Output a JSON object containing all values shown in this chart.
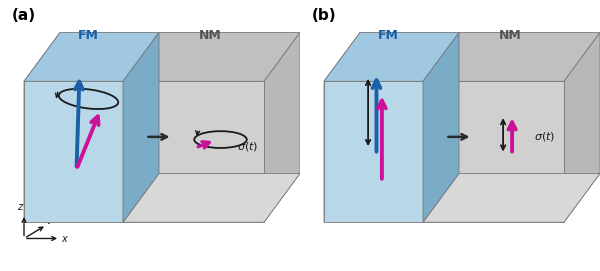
{
  "fig_width": 6.0,
  "fig_height": 2.71,
  "dpi": 100,
  "background_color": "#ffffff",
  "fm_front_color": "#b8d8ea",
  "fm_top_color": "#a0c8e0",
  "fm_left_color": "#88b8d4",
  "fm_diag_color": "#7aacc8",
  "nm_front_color": "#d0d0d0",
  "nm_top_color": "#c0c0c0",
  "nm_right_color": "#b8b8b8",
  "nm_diag_color": "#c8c8c8",
  "arrow_blue": "#1a5fa8",
  "arrow_magenta": "#cc1199",
  "arrow_dark": "#2a2a2a",
  "label_a": "(a)",
  "label_b": "(b)",
  "text_FM": "FM",
  "text_NM": "NM"
}
